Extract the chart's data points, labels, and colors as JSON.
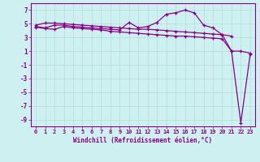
{
  "background_color": "#cff0f0",
  "grid_color": "#b0dede",
  "line_color": "#880088",
  "marker": "+",
  "xlabel": "Windchill (Refroidissement éolien,°C)",
  "xlim": [
    -0.5,
    23.5
  ],
  "ylim": [
    -10,
    8
  ],
  "yticks": [
    7,
    5,
    3,
    1,
    -1,
    -3,
    -5,
    -7,
    -9
  ],
  "xtick_labels": [
    "0",
    "1",
    "2",
    "3",
    "4",
    "5",
    "6",
    "7",
    "8",
    "9",
    "10",
    "11",
    "12",
    "13",
    "14",
    "15",
    "16",
    "17",
    "18",
    "19",
    "20",
    "21",
    "22",
    "23"
  ],
  "series1_x": [
    0,
    1,
    2,
    3,
    4,
    5,
    6,
    7,
    8,
    9,
    10,
    11,
    12,
    13,
    14,
    15,
    16,
    17,
    18,
    19,
    20,
    21
  ],
  "series1_y": [
    4.8,
    5.1,
    5.1,
    5.0,
    4.9,
    4.8,
    4.7,
    4.6,
    4.5,
    4.4,
    4.3,
    4.2,
    4.2,
    4.1,
    4.0,
    3.9,
    3.8,
    3.7,
    3.6,
    3.5,
    3.4,
    3.2
  ],
  "series2_x": [
    0,
    1,
    2,
    3,
    4,
    5,
    6,
    7,
    8,
    9,
    10,
    11,
    12,
    13,
    14,
    15,
    16,
    17,
    18,
    19,
    20,
    21,
    22,
    23
  ],
  "series2_y": [
    4.6,
    4.4,
    4.8,
    4.8,
    4.6,
    4.5,
    4.4,
    4.3,
    4.2,
    4.1,
    5.2,
    4.4,
    4.6,
    5.2,
    6.4,
    6.6,
    7.0,
    6.6,
    4.8,
    4.4,
    3.4,
    1.0,
    1.0,
    0.7
  ],
  "series3_x": [
    0,
    1,
    2,
    3,
    4,
    5,
    6,
    7,
    8,
    9,
    10,
    11,
    12,
    13,
    14,
    15,
    16,
    17,
    18,
    19,
    20,
    21,
    22,
    23
  ],
  "series3_y": [
    4.5,
    4.3,
    4.2,
    4.6,
    4.4,
    4.3,
    4.2,
    4.1,
    3.9,
    3.8,
    3.7,
    3.6,
    3.5,
    3.4,
    3.3,
    3.2,
    3.2,
    3.1,
    3.0,
    2.9,
    2.8,
    1.0,
    -9.5,
    0.5
  ]
}
